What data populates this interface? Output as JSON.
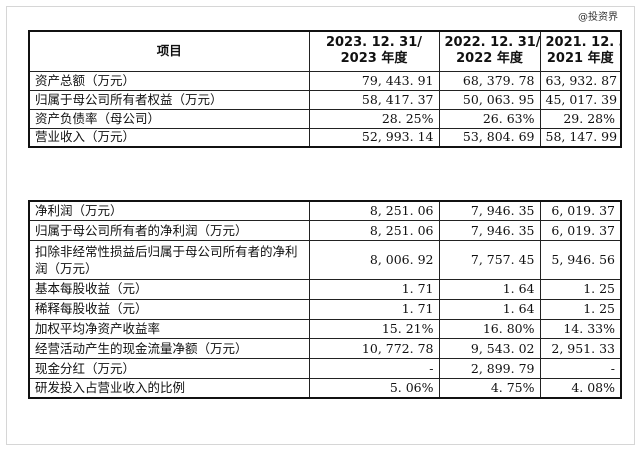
{
  "watermark": "@投资界",
  "header": {
    "item": "项目",
    "col2023": [
      "2023. 12. 31/",
      "2023 年度"
    ],
    "col2022": [
      "2022. 12. 31/",
      "2022 年度"
    ],
    "col2021": [
      "2021. 12. 31/",
      "2021 年度"
    ]
  },
  "table1": [
    {
      "label": "资产总额（万元）",
      "v2023": "79, 443. 91",
      "v2022": "68, 379. 78",
      "v2021": "63, 932. 87"
    },
    {
      "label": "归属于母公司所有者权益（万元）",
      "v2023": "58, 417. 37",
      "v2022": "50, 063. 95",
      "v2021": "45, 017. 39"
    },
    {
      "label": "资产负债率（母公司）",
      "v2023": "28. 25%",
      "v2022": "26. 63%",
      "v2021": "29. 28%"
    },
    {
      "label": "营业收入（万元）",
      "v2023": "52, 993. 14",
      "v2022": "53, 804. 69",
      "v2021": "58, 147. 99"
    }
  ],
  "table2": [
    {
      "label": "净利润（万元）",
      "v2023": "8, 251. 06",
      "v2022": "7, 946. 35",
      "v2021": "6, 019. 37"
    },
    {
      "label": "归属于母公司所有者的净利润（万元）",
      "v2023": "8, 251. 06",
      "v2022": "7, 946. 35",
      "v2021": "6, 019. 37"
    },
    {
      "label": "扣除非经常性损益后归属于母公司所有者的净利润（万元）",
      "v2023": "8, 006. 92",
      "v2022": "7, 757. 45",
      "v2021": "5, 946. 56"
    },
    {
      "label": "基本每股收益（元）",
      "v2023": "1. 71",
      "v2022": "1. 64",
      "v2021": "1. 25"
    },
    {
      "label": "稀释每股收益（元）",
      "v2023": "1. 71",
      "v2022": "1. 64",
      "v2021": "1. 25"
    },
    {
      "label": "加权平均净资产收益率",
      "v2023": "15. 21%",
      "v2022": "16. 80%",
      "v2021": "14. 33%"
    },
    {
      "label": "经营活动产生的现金流量净额（万元）",
      "v2023": "10, 772. 78",
      "v2022": "9, 543. 02",
      "v2021": "2, 951. 33"
    },
    {
      "label": "现金分红（万元）",
      "v2023": "-",
      "v2022": "2, 899. 79",
      "v2021": "-"
    },
    {
      "label": "研发投入占营业收入的比例",
      "v2023": "5. 06%",
      "v2022": "4. 75%",
      "v2021": "4. 08%"
    }
  ]
}
